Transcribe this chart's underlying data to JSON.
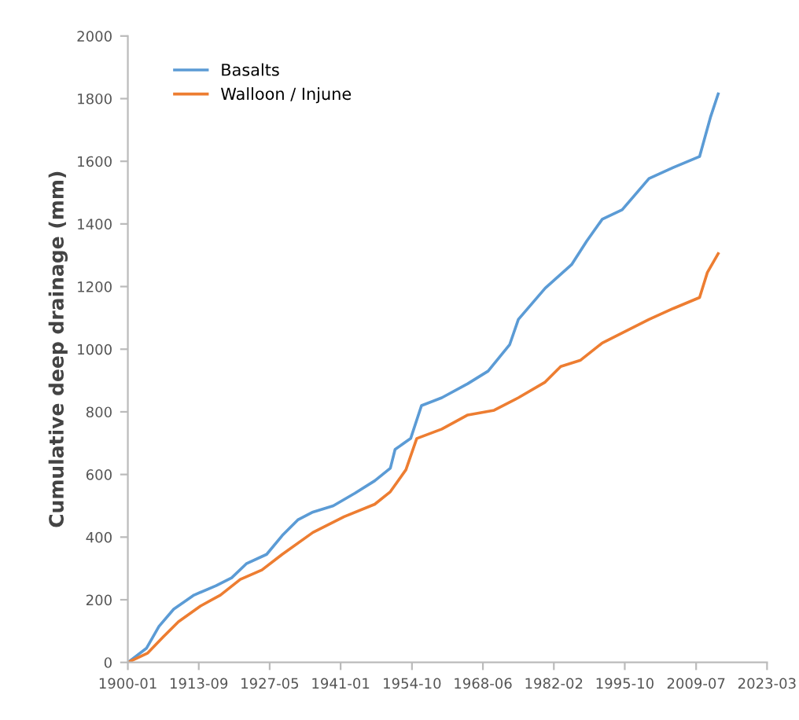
{
  "chart_data": {
    "type": "line",
    "ylabel": "Cumulative deep drainage (mm)",
    "xlim": [
      "1900-01",
      "2023-03"
    ],
    "xticks": [
      "1900-01",
      "1913-09",
      "1927-05",
      "1941-01",
      "1954-10",
      "1968-06",
      "1982-02",
      "1995-10",
      "2009-07",
      "2023-03"
    ],
    "ylim": [
      0,
      2000
    ],
    "yticks": [
      0,
      200,
      400,
      600,
      800,
      1000,
      1200,
      1400,
      1600,
      1800,
      2000
    ],
    "grid": false,
    "legend": "top left",
    "marker": "none",
    "line_style": "solid",
    "series": [
      {
        "name": "Basalts",
        "color": "#5b9bd5",
        "x": [
          "1900-01",
          "1903-08",
          "1906-01",
          "1908-11",
          "1912-10",
          "1917-01",
          "1920-01",
          "1922-11",
          "1926-10",
          "1929-10",
          "1932-10",
          "1935-09",
          "1939-08",
          "1943-10",
          "1947-08",
          "1950-08",
          "1951-07",
          "1954-07",
          "1956-08",
          "1960-07",
          "1965-07",
          "1969-06",
          "1973-08",
          "1975-04",
          "1980-06",
          "1985-07",
          "1988-06",
          "1991-06",
          "1995-04",
          "2000-06",
          "2005-02",
          "2010-03",
          "2012-04",
          "2013-10"
        ],
        "values": [
          0,
          45,
          115,
          170,
          215,
          245,
          270,
          315,
          345,
          405,
          455,
          480,
          500,
          540,
          580,
          620,
          680,
          715,
          820,
          845,
          890,
          930,
          1015,
          1095,
          1195,
          1270,
          1345,
          1415,
          1445,
          1545,
          1580,
          1615,
          1740,
          1815
        ]
      },
      {
        "name": "Walloon / Injune",
        "color": "#ed7d31",
        "x": [
          "1900-01",
          "1903-11",
          "1906-10",
          "1909-10",
          "1914-01",
          "1917-11",
          "1921-09",
          "1925-11",
          "1929-10",
          "1935-09",
          "1941-09",
          "1947-08",
          "1950-08",
          "1953-08",
          "1955-09",
          "1960-07",
          "1965-07",
          "1970-08",
          "1975-04",
          "1980-06",
          "1983-06",
          "1987-04",
          "1991-06",
          "2000-06",
          "2005-02",
          "2010-03",
          "2011-09",
          "2013-10"
        ],
        "values": [
          0,
          30,
          80,
          130,
          180,
          215,
          265,
          295,
          345,
          415,
          465,
          505,
          545,
          615,
          715,
          745,
          790,
          805,
          845,
          895,
          945,
          965,
          1020,
          1095,
          1130,
          1165,
          1245,
          1305
        ]
      }
    ]
  }
}
